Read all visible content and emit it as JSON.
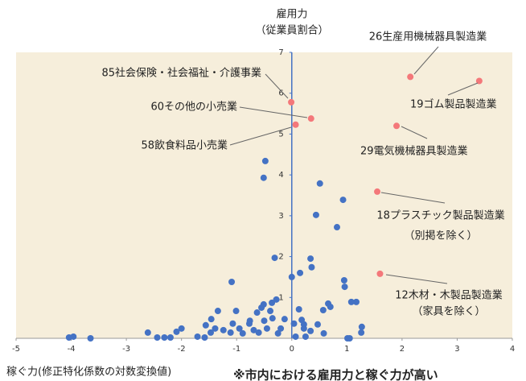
{
  "chart_data": {
    "type": "scatter",
    "title": [
      "雇用力",
      "（従業員割合）"
    ],
    "x_label": "稼ぐ力(修正特化係数の対数変換値)",
    "note": "※市内における雇用力と稼ぐ力が高い",
    "xlim": [
      -5,
      4
    ],
    "ylim": [
      0,
      7
    ],
    "xticks": [
      -5,
      -4,
      -3,
      -2,
      -1,
      0,
      1,
      2,
      3,
      4
    ],
    "yticks": [
      1,
      2,
      3,
      4,
      5,
      6,
      7
    ],
    "background": "#f6eedb",
    "series": [
      {
        "color": "#4472c4",
        "x": [
          -0.48,
          -0.51,
          0.51,
          0.93,
          0.44,
          0.82,
          -0.31,
          0.34,
          0.36,
          0.15,
          0,
          0.95,
          -1.09,
          0.96,
          -0.28,
          -0.51,
          -0.55,
          -0.36,
          0.66,
          0.7,
          1.08,
          1.17,
          -1.34,
          -1.01,
          -0.63,
          -0.39,
          0.13,
          0.57,
          -1.46,
          -0.76,
          -0.35,
          -0.13,
          0.18,
          -1.07,
          -0.77,
          -0.5,
          0.04,
          0.22,
          0.47,
          1.27,
          -2.0,
          -1.56,
          -1.39,
          -1.24,
          -0.95,
          -0.69,
          -0.45,
          -0.2,
          0.22,
          0.34,
          -2.61,
          -2.09,
          -1.47,
          -1.11,
          -0.89,
          -0.6,
          -0.25,
          0.58,
          1.26,
          -4.04,
          -3.96,
          -3.65,
          -2.44,
          -2.31,
          -2.2,
          -1.71,
          -1.58,
          0.07,
          0.25,
          1.01,
          1.05
        ],
        "y": [
          4.34,
          3.93,
          3.79,
          3.39,
          3.02,
          2.72,
          1.97,
          1.95,
          1.74,
          1.6,
          1.5,
          1.42,
          1.38,
          1.26,
          0.95,
          0.83,
          0.75,
          0.87,
          0.85,
          0.77,
          0.89,
          0.89,
          0.67,
          0.67,
          0.63,
          0.67,
          0.71,
          0.69,
          0.47,
          0.43,
          0.49,
          0.47,
          0.45,
          0.36,
          0.36,
          0.43,
          0.36,
          0.34,
          0.34,
          0.28,
          0.24,
          0.32,
          0.24,
          0.2,
          0.24,
          0.2,
          0.24,
          0.24,
          0.24,
          0.18,
          0.14,
          0.16,
          0.14,
          0.14,
          0.12,
          0.14,
          0.12,
          0.12,
          0.14,
          0.02,
          0.04,
          0,
          0.02,
          0.02,
          0.02,
          0.04,
          0.02,
          0.04,
          0.04,
          0,
          0
        ]
      },
      {
        "color": "#f4787a",
        "x": [
          -0.01,
          0.35,
          0.07,
          2.15,
          3.4,
          1.9,
          1.55,
          1.6
        ],
        "y": [
          5.78,
          5.38,
          5.23,
          6.4,
          6.3,
          5.2,
          3.59,
          1.58
        ],
        "labels": [
          [
            "85社会保険・社会福祉・介護事業"
          ],
          [
            "60その他の小売業"
          ],
          [
            "58飲食料品小売業"
          ],
          [
            "26生産用機械器具製造業"
          ],
          [
            "19ゴム製品製造業"
          ],
          [
            "29電気機械器具製造業"
          ],
          [
            "18プラスチック製品製造業",
            "（別掲を除く）"
          ],
          [
            "12木材・木製品製造業",
            "（家具を除く）"
          ]
        ]
      }
    ]
  }
}
